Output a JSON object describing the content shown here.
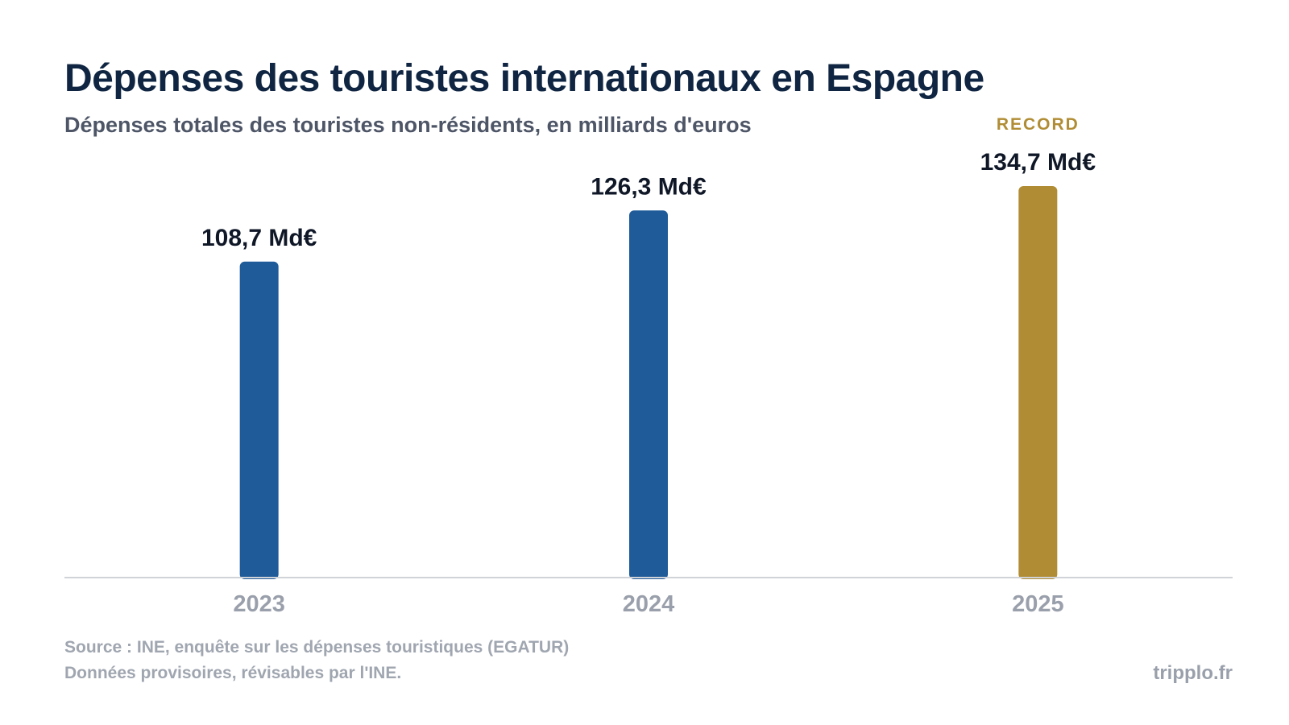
{
  "header": {
    "title": "Dépenses des touristes internationaux en Espagne",
    "subtitle": "Dépenses totales des touristes non-résidents, en milliards d'euros"
  },
  "chart_data": {
    "type": "bar",
    "categories": [
      "2023",
      "2024",
      "2025"
    ],
    "values": [
      108.7,
      126.3,
      134.7
    ],
    "value_labels": [
      "108,7 Md€",
      "126,3 Md€",
      "134,7 Md€"
    ],
    "unit": "Md€",
    "highlight": {
      "category": "2025",
      "badge": "RECORD"
    },
    "ylim": [
      0,
      134.7
    ],
    "grid": false,
    "colors": {
      "bar": "#1f5b99",
      "highlight": "#b08d35",
      "axis": "#d0d3d8",
      "value_text": "#101828",
      "tick_text": "#9aa0ab"
    }
  },
  "footer": {
    "source_line1": "Source : INE, enquête sur les dépenses touristiques (EGATUR)",
    "source_line2": "Données provisoires, révisables par l'INE.",
    "brand": "tripplo.fr"
  }
}
